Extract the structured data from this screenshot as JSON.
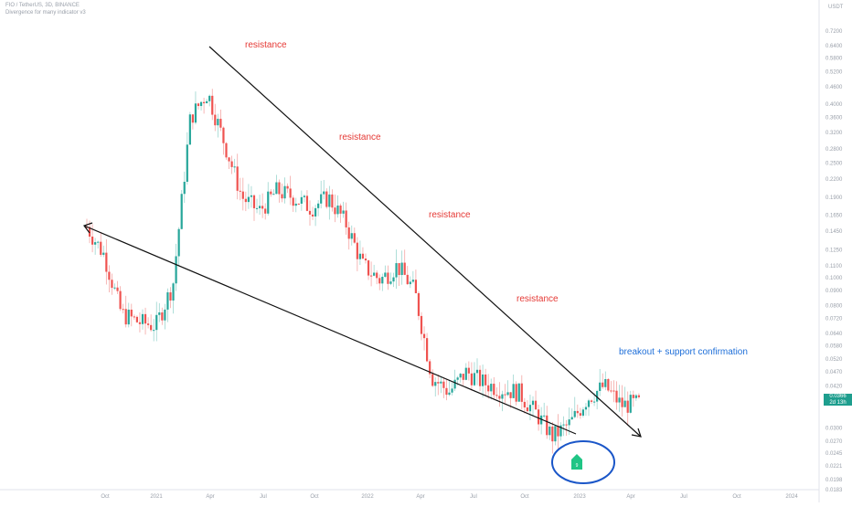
{
  "header": {
    "symbol_line": "FIO / TetherUS, 3D, BINANCE",
    "indicator_line": "Divergence for many indicator v3"
  },
  "price_tag": {
    "price": "0.0366",
    "countdown": "2d 13h"
  },
  "colors": {
    "up": "#26a69a",
    "down": "#ef5350",
    "wick_up": "#9ad6cf",
    "wick_down": "#f4a6a4",
    "annotation_red": "#e53935",
    "annotation_blue": "#1e6fd9",
    "trendline": "#111111",
    "circle": "#1a56c8",
    "badge": "#20c585"
  },
  "chart_data": {
    "type": "candlestick",
    "title": "FIO / TetherUS, 3D, BINANCE",
    "y_scale": "log",
    "y_unit": "USDT",
    "ylim": [
      0.0183,
      0.87
    ],
    "y_ticks": [
      "0.7200",
      "0.6400",
      "0.5800",
      "0.5200",
      "0.4600",
      "0.4000",
      "0.3600",
      "0.3200",
      "0.2800",
      "0.2500",
      "0.2200",
      "0.1900",
      "0.1650",
      "0.1450",
      "0.1250",
      "0.1100",
      "0.1000",
      "0.0900",
      "0.0800",
      "0.0720",
      "0.0640",
      "0.0580",
      "0.0520",
      "0.0470",
      "0.0420",
      "0.0366",
      "0.0300",
      "0.0270",
      "0.0245",
      "0.0221",
      "0.0198",
      "0.0183"
    ],
    "x_ticks": [
      "Oct",
      "2021",
      "Apr",
      "Jul",
      "Oct",
      "2022",
      "Apr",
      "Jul",
      "Oct",
      "2023",
      "Apr",
      "Jul",
      "Oct",
      "2024"
    ],
    "series_close_path": [
      [
        "Sep 2020",
        0.15
      ],
      [
        "Oct 2020",
        0.12
      ],
      [
        "Nov 2020",
        0.075
      ],
      [
        "Dec 2020",
        0.07
      ],
      [
        "Jan 2021",
        0.068
      ],
      [
        "Feb 2021",
        0.095
      ],
      [
        "Mar 2021",
        0.36
      ],
      [
        "Apr 2021",
        0.44
      ],
      [
        "May 2021",
        0.29
      ],
      [
        "Jun 2021",
        0.19
      ],
      [
        "Jul 2021",
        0.17
      ],
      [
        "Aug 2021",
        0.2
      ],
      [
        "Sep 2021",
        0.19
      ],
      [
        "Oct 2021",
        0.175
      ],
      [
        "Nov 2021",
        0.19
      ],
      [
        "Dec 2021",
        0.155
      ],
      [
        "Jan 2022",
        0.11
      ],
      [
        "Feb 2022",
        0.098
      ],
      [
        "Mar 2022",
        0.11
      ],
      [
        "Apr 2022",
        0.09
      ],
      [
        "May 2022",
        0.045
      ],
      [
        "Jun 2022",
        0.04
      ],
      [
        "Jul 2022",
        0.047
      ],
      [
        "Aug 2022",
        0.043
      ],
      [
        "Sep 2022",
        0.041
      ],
      [
        "Oct 2022",
        0.04
      ],
      [
        "Nov 2022",
        0.034
      ],
      [
        "Dec 2022",
        0.028
      ],
      [
        "Jan 2023",
        0.031
      ],
      [
        "Feb 2023",
        0.038
      ],
      [
        "Mar 2023",
        0.042
      ],
      [
        "Apr 2023",
        0.036
      ],
      [
        "May 2023",
        0.0366
      ]
    ],
    "annotations": [
      {
        "text": "resistance"
      },
      {
        "text": "resistance"
      },
      {
        "text": "resistance"
      },
      {
        "text": "resistance"
      },
      {
        "text": "breakout + support confirmation"
      }
    ],
    "badge_text": "9",
    "grid": false
  }
}
